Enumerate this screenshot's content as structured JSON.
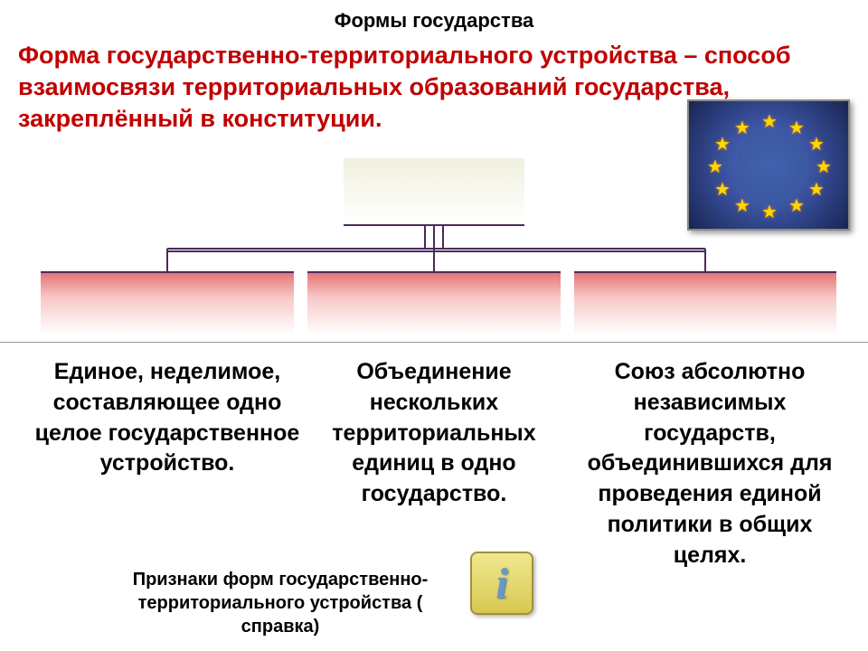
{
  "title": "Формы государства",
  "title_fontsize": 22,
  "title_color": "#000000",
  "definition": "Форма государственно-территориального устройства – способ взаимосвязи территориальных образований государства, закреплённый в конституции.",
  "definition_fontsize": 27,
  "definition_color": "#c00000",
  "eu_image": {
    "bg_gradient_inner": "#5575d8",
    "bg_gradient_outer": "#1a2450",
    "star_color": "#ffd700",
    "star_count": 12,
    "star_fontsize": 20
  },
  "hierarchy": {
    "root_box": {
      "bg_top": "#f0f0e0",
      "bg_bottom": "#ffffff",
      "border_color": "#4a2a5a"
    },
    "child_box": {
      "bg_top": "#e57575",
      "bg_mid": "#f8c8c8",
      "bg_bottom": "#ffffff",
      "border_color": "#4a2a5a"
    },
    "connector_color": "#4a2a5a",
    "connector_width": 2
  },
  "columns": [
    {
      "label": "",
      "description": "Единое, неделимое, составляющее одно целое государственное устройство."
    },
    {
      "label": "",
      "description": "Объединение нескольких территориальных единиц в одно государство."
    },
    {
      "label": "",
      "description": "Союз абсолютно независимых государств, объединившихся для проведения единой политики в общих целях."
    }
  ],
  "description_fontsize": 25,
  "description_color": "#000000",
  "footnote": "Признаки форм государственно-территориального устройства ( справка)",
  "footnote_fontsize": 20,
  "footnote_color": "#000000",
  "info_icon": {
    "glyph": "i",
    "bg_top": "#f0e890",
    "bg_bottom": "#d8c850",
    "border_color": "#a09040",
    "glyph_color": "#6898c8"
  }
}
